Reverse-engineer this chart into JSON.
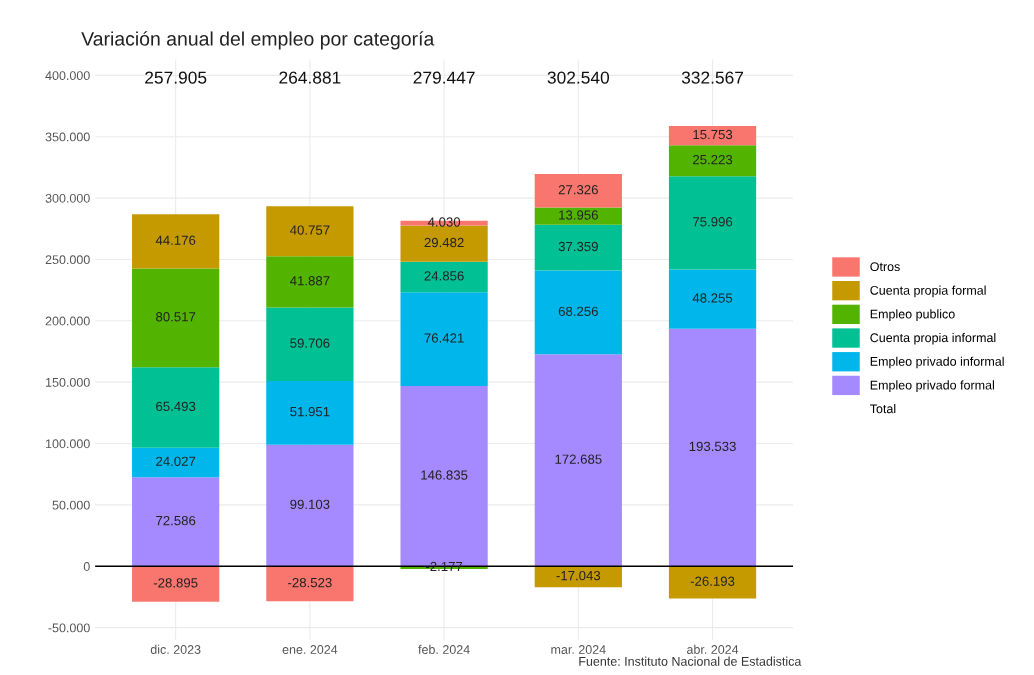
{
  "chart_data": {
    "type": "bar",
    "stacked": true,
    "title": "Variación anual del empleo por categoría",
    "categories": [
      "dic. 2023",
      "ene. 2024",
      "feb. 2024",
      "mar. 2024",
      "abr. 2024"
    ],
    "series": [
      {
        "name": "Empleo privado formal",
        "color": "#a58aff",
        "values": [
          72586,
          99103,
          146835,
          172685,
          193533
        ],
        "value_labels": [
          "72.586",
          "99.103",
          "146.835",
          "172.685",
          "193.533"
        ]
      },
      {
        "name": "Empleo privado informal",
        "color": "#00b6eb",
        "values": [
          24027,
          51951,
          76421,
          68256,
          48255
        ],
        "value_labels": [
          "24.027",
          "51.951",
          "76.421",
          "68.256",
          "48.255"
        ]
      },
      {
        "name": "Cuenta propia informal",
        "color": "#00c094",
        "values": [
          65493,
          59706,
          24856,
          37359,
          75996
        ],
        "value_labels": [
          "65.493",
          "59.706",
          "24.856",
          "37.359",
          "75.996"
        ]
      },
      {
        "name": "Empleo publico",
        "color": "#53b400",
        "values": [
          80517,
          41887,
          -2177,
          13956,
          25223
        ],
        "value_labels": [
          "80.517",
          "41.887",
          "-2.177",
          "13.956",
          "25.223"
        ]
      },
      {
        "name": "Cuenta propia formal",
        "color": "#c49a00",
        "values": [
          44176,
          40757,
          29482,
          -17043,
          -26193
        ],
        "value_labels": [
          "44.176",
          "40.757",
          "29.482",
          "-17.043",
          "-26.193"
        ]
      },
      {
        "name": "Otros",
        "color": "#f8766d",
        "values": [
          -28895,
          -28523,
          4030,
          27326,
          15753
        ],
        "value_labels": [
          "-28.895",
          "-28.523",
          "4.030",
          "27.326",
          "15.753"
        ]
      }
    ],
    "ylim": [
      -60000,
      413000
    ],
    "yticks": [
      {
        "value": -50000,
        "label": "-50.000"
      },
      {
        "value": 0,
        "label": "0"
      },
      {
        "value": 50000,
        "label": "50.000"
      },
      {
        "value": 100000,
        "label": "100.000"
      },
      {
        "value": 150000,
        "label": "150.000"
      },
      {
        "value": 200000,
        "label": "200.000"
      },
      {
        "value": 250000,
        "label": "250.000"
      },
      {
        "value": 300000,
        "label": "300.000"
      },
      {
        "value": 350000,
        "label": "350.000"
      },
      {
        "value": 400000,
        "label": "400.000"
      }
    ],
    "ref_lines": [
      {
        "axis": "y",
        "value": 0,
        "color": "#000000"
      }
    ],
    "grid": true,
    "legend": "right",
    "annotations": [
      "257.905",
      "264.881",
      "279.447",
      "302.540",
      "332.567",
      "Total",
      "Fuente: Instituto Nacional de Estadistica"
    ]
  }
}
